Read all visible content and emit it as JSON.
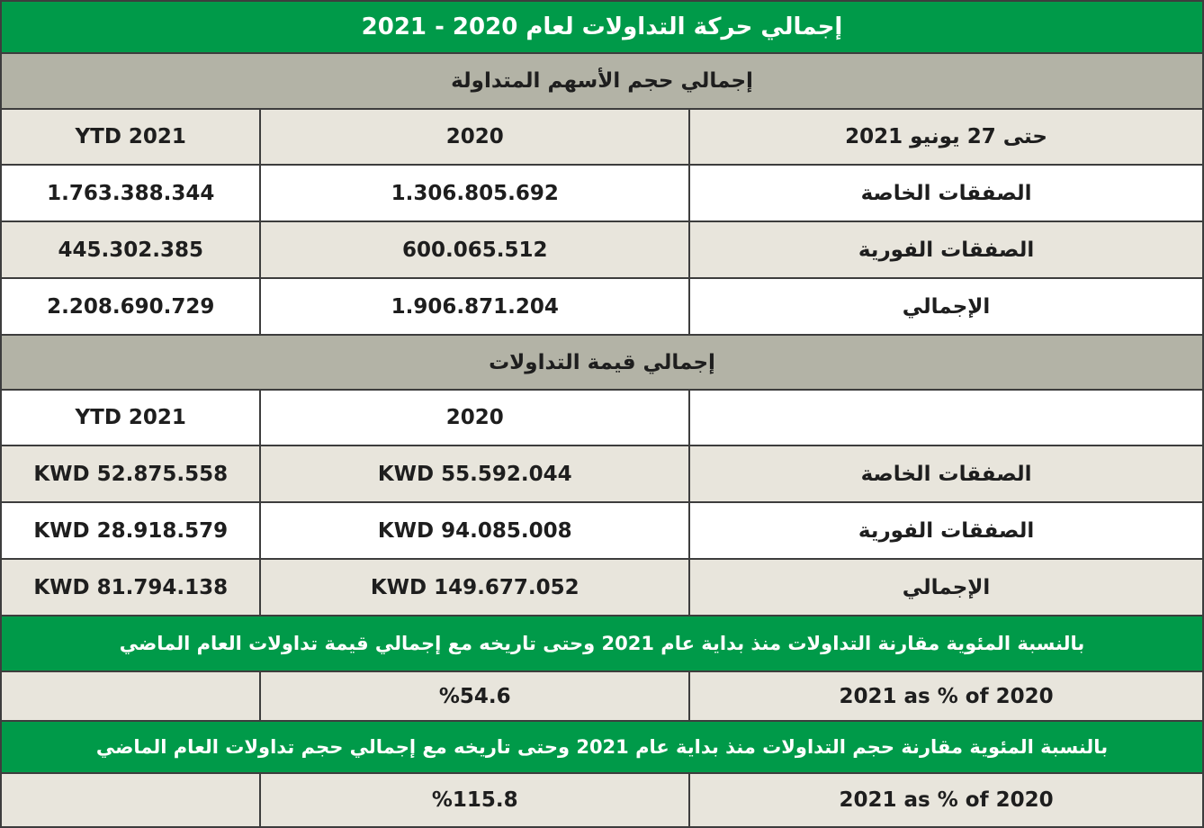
{
  "colors": {
    "green": "#009a49",
    "gray": "#b3b3a6",
    "beige": "#e8e5dc"
  },
  "title": "إجمالي حركة التداولات لعام 2020 - 2021",
  "volume": {
    "section": "إجمالي حجم الأسهم المتداولة",
    "headers": [
      "حتى 27 يونيو 2021",
      "2020",
      "YTD 2021"
    ],
    "rows": [
      {
        "label": "الصفقات الخاصة",
        "y2020": "1.306.805.692",
        "ytd2021": "1.763.388.344"
      },
      {
        "label": "الصفقات الفورية",
        "y2020": "600.065.512",
        "ytd2021": "445.302.385"
      },
      {
        "label": "الإجمالي",
        "y2020": "1.906.871.204",
        "ytd2021": "2.208.690.729"
      }
    ]
  },
  "value": {
    "section": "إجمالي قيمة التداولات",
    "headers": [
      "",
      "2020",
      "YTD 2021"
    ],
    "rows": [
      {
        "label": "الصفقات الخاصة",
        "y2020": "KWD 55.592.044",
        "ytd2021": "KWD 52.875.558"
      },
      {
        "label": "الصفقات الفورية",
        "y2020": "KWD 94.085.008",
        "ytd2021": "KWD 28.918.579"
      },
      {
        "label": "الإجمالي",
        "y2020": "KWD 149.677.052",
        "ytd2021": "KWD 81.794.138"
      }
    ]
  },
  "comparisons": [
    {
      "note": "بالنسبة المئوية مقارنة التداولات منذ بداية عام 2021 وحتى تاريخه مع إجمالي قيمة تداولات العام الماضي",
      "label": "2021 as % of 2020",
      "value": "%54.6"
    },
    {
      "note": "بالنسبة المئوية مقارنة حجم التداولات منذ بداية عام 2021 وحتى تاريخه مع إجمالي حجم تداولات العام الماضي",
      "label": "2021 as % of 2020",
      "value": "%115.8"
    }
  ]
}
